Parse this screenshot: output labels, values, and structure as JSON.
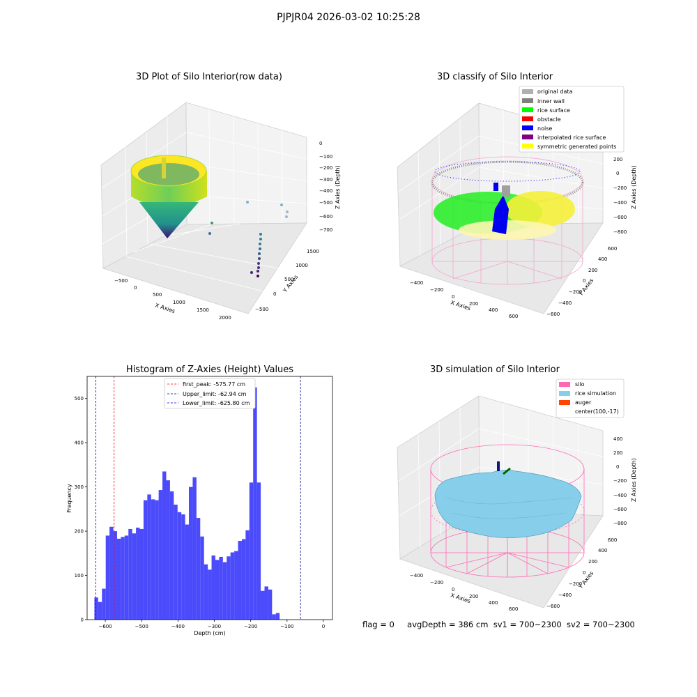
{
  "page": {
    "suptitle": "PJPJR04 2026-03-02 10:25:28",
    "status": {
      "flag": "flag = 0",
      "avg_depth": "avgDepth = 386 cm",
      "sv1": "sv1 = 700~2300",
      "sv2": "sv2 = 700~2300"
    }
  },
  "panels": {
    "raw": {
      "title": "3D Plot of Silo Interior(row data)",
      "xlabel": "X Axies",
      "ylabel": "Y Axies",
      "zlabel": "Z Axies (Depth)",
      "xticks": [
        "−500",
        "0",
        "500",
        "1000",
        "1500",
        "2000"
      ],
      "yticks": [
        "−500",
        "0",
        "500",
        "1000",
        "1500"
      ],
      "zticks": [
        "0",
        "−100",
        "−200",
        "−300",
        "−400",
        "−500",
        "−600",
        "−700"
      ]
    },
    "classify": {
      "title": "3D classify of Silo Interior",
      "xlabel": "X Axies",
      "ylabel": "Y Axies",
      "zlabel": "Z Axies (Depth)",
      "xticks": [
        "−400",
        "−200",
        "0",
        "200",
        "400",
        "600"
      ],
      "yticks": [
        "−600",
        "−400",
        "−200",
        "0",
        "200",
        "400",
        "600"
      ],
      "zticks": [
        "200",
        "0",
        "−200",
        "−400",
        "−600",
        "−800"
      ],
      "legend": [
        {
          "label": "original data",
          "color": "#b0b0b0"
        },
        {
          "label": "inner wall",
          "color": "#808080"
        },
        {
          "label": "rice surface",
          "color": "#00ff00"
        },
        {
          "label": "obstacle",
          "color": "#ff0000"
        },
        {
          "label": "noise",
          "color": "#0000ff"
        },
        {
          "label": "interpolated rice surface",
          "color": "#800080"
        },
        {
          "label": "symmetric generated points",
          "color": "#ffff00"
        }
      ]
    },
    "simulation": {
      "title": "3D simulation of Silo Interior",
      "xlabel": "X Axies",
      "ylabel": "Y Axies",
      "zlabel": "Z Axies (Depth)",
      "xticks": [
        "−400",
        "−200",
        "0",
        "200",
        "400",
        "600"
      ],
      "yticks": [
        "−600",
        "−400",
        "−200",
        "0",
        "200",
        "400",
        "600"
      ],
      "zticks": [
        "400",
        "200",
        "0",
        "−200",
        "−400",
        "−600",
        "−800"
      ],
      "legend": [
        {
          "label": "silo",
          "color": "#ff69b4"
        },
        {
          "label": "rice simulation",
          "color": "#87ceeb"
        },
        {
          "label": "auger",
          "color": "#ff4500"
        },
        {
          "label": "center(100,-17)",
          "color": ""
        }
      ]
    }
  },
  "chart_data": {
    "type": "bar",
    "title": "Histogram of Z-Axies (Height) Values",
    "xlabel": "Depth (cm)",
    "ylabel": "Frequency",
    "xlim": [
      -650,
      25
    ],
    "ylim": [
      0,
      550
    ],
    "xticks": [
      -600,
      -500,
      -400,
      -300,
      -200,
      -100,
      0
    ],
    "yticks": [
      0,
      100,
      200,
      300,
      400,
      500
    ],
    "bin_start": -630,
    "bin_width": 10.4,
    "values": [
      50,
      40,
      70,
      190,
      210,
      200,
      183,
      187,
      190,
      205,
      195,
      208,
      205,
      270,
      283,
      272,
      270,
      293,
      335,
      315,
      290,
      260,
      243,
      238,
      215,
      300,
      322,
      230,
      188,
      125,
      113,
      145,
      135,
      142,
      130,
      143,
      152,
      155,
      178,
      182,
      202,
      310,
      525,
      310,
      65,
      75,
      68,
      12,
      15
    ],
    "bar_color": "#4b4bfb",
    "lines": [
      {
        "name": "first_peak: -575.77 cm",
        "x": -575.77,
        "color": "#ff0000"
      },
      {
        "name": "Upper_limit: -62.94 cm",
        "x": -62.94,
        "color": "#00008b"
      },
      {
        "name": "Lower_limit: -625.80 cm",
        "x": -625.8,
        "color": "#0000cd"
      }
    ],
    "legend_position": "top-center"
  }
}
